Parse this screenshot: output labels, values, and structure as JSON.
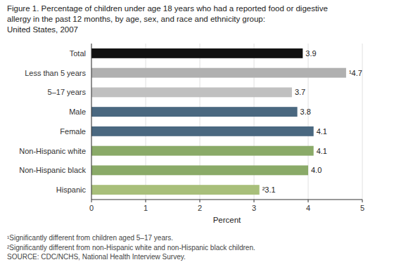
{
  "chart_data": {
    "type": "bar",
    "orientation": "horizontal",
    "title": [
      "Figure 1. Percentage of children under age 18 years who had a reported food or digestive",
      "allergy in the past 12 months, by age, sex, and race and ethnicity group:",
      "United States, 2007"
    ],
    "categories": [
      "Total",
      "Less than 5 years",
      "5–17 years",
      "Male",
      "Female",
      "Non-Hispanic white",
      "Non-Hispanic black",
      "Hispanic"
    ],
    "values": [
      3.9,
      4.7,
      3.7,
      3.8,
      4.1,
      4.1,
      4.0,
      3.1
    ],
    "value_labels": [
      "3.9",
      "¹4.7",
      "3.7",
      "3.8",
      "4.1",
      "4.1",
      "4.0",
      "²3.1"
    ],
    "data_labels": true,
    "colors": [
      "#111111",
      "#b0b0b0",
      "#c0c0c0",
      "#4a6880",
      "#4a6880",
      "#8aaa68",
      "#8aaa68",
      "#a8bf7a"
    ],
    "xlabel": "Percent",
    "xlim": [
      0,
      5
    ],
    "xticks": [
      0,
      1,
      2,
      3,
      4,
      5
    ],
    "grid": true,
    "annotations": [
      "¹Significantly different from children aged 5–17 years.",
      "²Significantly different from non-Hispanic white and non-Hispanic black children.",
      "SOURCE: CDC/NCHS, National Health Interview Survey."
    ]
  }
}
